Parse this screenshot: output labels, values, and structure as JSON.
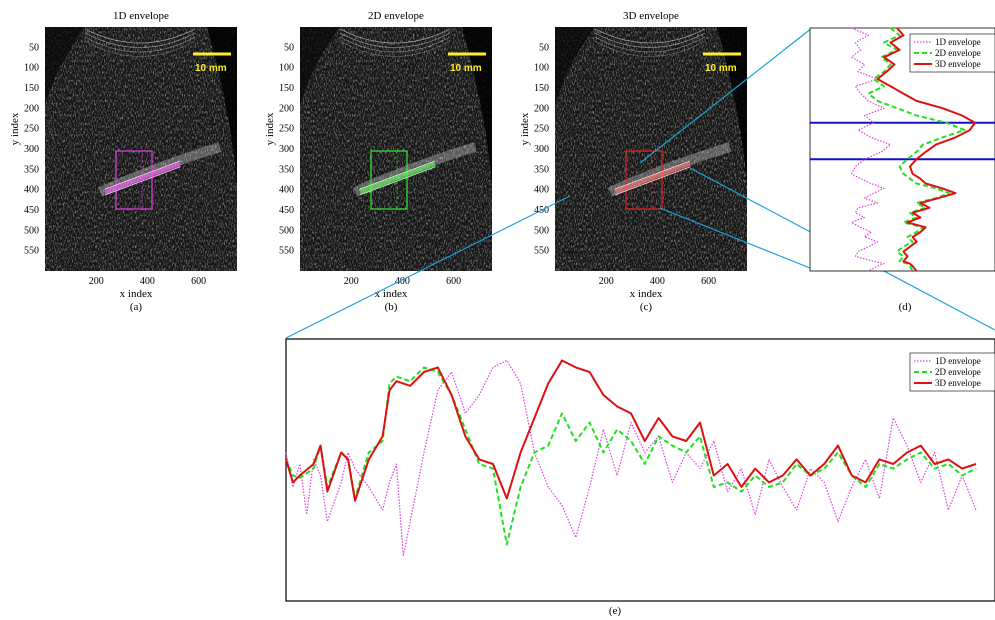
{
  "panels": [
    {
      "id": "a",
      "title": "1D envelope",
      "caption": "(a)",
      "roi_color": "#d63bd6",
      "band_color": "#ff66ff"
    },
    {
      "id": "b",
      "title": "2D envelope",
      "caption": "(b)",
      "roi_color": "#33dd33",
      "band_color": "#66ff66"
    },
    {
      "id": "c",
      "title": "3D envelope",
      "caption": "(c)",
      "roi_color": "#dd2222",
      "band_color": "#ff7777"
    }
  ],
  "axes": {
    "xlabel": "x index",
    "ylabel": "y index",
    "x_ticks": [
      "200",
      "400",
      "600"
    ],
    "y_ticks": [
      "50",
      "100",
      "150",
      "200",
      "250",
      "300",
      "350",
      "400",
      "450",
      "500",
      "550"
    ]
  },
  "scale_bar_label": "10 mm",
  "panel_d": {
    "caption": "(d)"
  },
  "panel_e": {
    "caption": "(e)"
  },
  "legend": {
    "items": [
      "1D envelope",
      "2D envelope",
      "3D envelope"
    ]
  },
  "colors": {
    "1d": "#e040e0",
    "2d": "#20e020",
    "3d": "#dd1111",
    "zoom_lines": "#1aa3d9",
    "guide_lines": "#1010cc",
    "scale_bar": "#ffef2a"
  },
  "chart_data": [
    {
      "type": "line",
      "panel": "d",
      "orientation": "vertical",
      "ylim": [
        0,
        1
      ],
      "xlim": [
        0,
        1
      ],
      "horizontal_markers": [
        0.39,
        0.54
      ],
      "series": [
        {
          "name": "1D envelope",
          "style": "dotted",
          "x": [
            0.05,
            0.18,
            0.08,
            0.12,
            0.05,
            0.15,
            0.1,
            0.25,
            0.08,
            0.12,
            0.18,
            0.3,
            0.15,
            0.22,
            0.1,
            0.2,
            0.35,
            0.28,
            0.15,
            0.08,
            0.05,
            0.12,
            0.2,
            0.3,
            0.22,
            0.15,
            0.25,
            0.1,
            0.08,
            0.15,
            0.05,
            0.12,
            0.2,
            0.15,
            0.25,
            0.18,
            0.1,
            0.08,
            0.22,
            0.3,
            0.25,
            0.18
          ],
          "y": [
            0.0,
            0.03,
            0.06,
            0.09,
            0.12,
            0.15,
            0.18,
            0.21,
            0.24,
            0.27,
            0.3,
            0.33,
            0.36,
            0.39,
            0.42,
            0.45,
            0.48,
            0.51,
            0.54,
            0.57,
            0.6,
            0.62,
            0.64,
            0.66,
            0.68,
            0.7,
            0.72,
            0.74,
            0.76,
            0.78,
            0.8,
            0.82,
            0.84,
            0.86,
            0.88,
            0.9,
            0.92,
            0.94,
            0.96,
            0.97,
            0.98,
            1.0
          ]
        },
        {
          "name": "2D envelope",
          "style": "dashed",
          "x": [
            0.35,
            0.42,
            0.3,
            0.4,
            0.28,
            0.35,
            0.3,
            0.22,
            0.3,
            0.18,
            0.25,
            0.4,
            0.55,
            0.78,
            0.92,
            0.75,
            0.6,
            0.55,
            0.48,
            0.42,
            0.45,
            0.5,
            0.55,
            0.7,
            0.8,
            0.7,
            0.55,
            0.62,
            0.5,
            0.55,
            0.45,
            0.6,
            0.55,
            0.48,
            0.52,
            0.45,
            0.4,
            0.45,
            0.42,
            0.48,
            0.5,
            0.52
          ],
          "y": [
            0.0,
            0.03,
            0.06,
            0.09,
            0.12,
            0.15,
            0.18,
            0.21,
            0.24,
            0.27,
            0.3,
            0.33,
            0.36,
            0.39,
            0.42,
            0.45,
            0.48,
            0.51,
            0.54,
            0.57,
            0.6,
            0.62,
            0.64,
            0.66,
            0.68,
            0.7,
            0.72,
            0.74,
            0.76,
            0.78,
            0.8,
            0.82,
            0.84,
            0.86,
            0.88,
            0.9,
            0.92,
            0.94,
            0.96,
            0.97,
            0.98,
            1.0
          ]
        },
        {
          "name": "3D envelope",
          "style": "solid",
          "x": [
            0.4,
            0.45,
            0.35,
            0.42,
            0.3,
            0.38,
            0.32,
            0.25,
            0.35,
            0.45,
            0.55,
            0.75,
            0.9,
            1.0,
            0.96,
            0.85,
            0.7,
            0.62,
            0.55,
            0.5,
            0.52,
            0.58,
            0.62,
            0.75,
            0.85,
            0.72,
            0.58,
            0.65,
            0.52,
            0.58,
            0.48,
            0.62,
            0.58,
            0.52,
            0.55,
            0.5,
            0.45,
            0.48,
            0.45,
            0.5,
            0.52,
            0.55
          ],
          "y": [
            0.0,
            0.03,
            0.06,
            0.09,
            0.12,
            0.15,
            0.18,
            0.21,
            0.24,
            0.27,
            0.3,
            0.33,
            0.36,
            0.39,
            0.42,
            0.45,
            0.48,
            0.51,
            0.54,
            0.57,
            0.6,
            0.62,
            0.64,
            0.66,
            0.68,
            0.7,
            0.72,
            0.74,
            0.76,
            0.78,
            0.8,
            0.82,
            0.84,
            0.86,
            0.88,
            0.9,
            0.92,
            0.94,
            0.96,
            0.97,
            0.98,
            1.0
          ]
        }
      ]
    },
    {
      "type": "line",
      "panel": "e",
      "xlim": [
        0,
        1
      ],
      "ylim": [
        0,
        1
      ],
      "series": [
        {
          "name": "1D envelope",
          "style": "dotted",
          "x": [
            0.0,
            0.01,
            0.02,
            0.03,
            0.04,
            0.05,
            0.06,
            0.08,
            0.09,
            0.1,
            0.12,
            0.14,
            0.15,
            0.16,
            0.17,
            0.18,
            0.2,
            0.22,
            0.24,
            0.26,
            0.28,
            0.3,
            0.32,
            0.34,
            0.36,
            0.38,
            0.4,
            0.42,
            0.44,
            0.46,
            0.48,
            0.5,
            0.52,
            0.54,
            0.56,
            0.58,
            0.6,
            0.62,
            0.64,
            0.66,
            0.68,
            0.7,
            0.72,
            0.74,
            0.76,
            0.78,
            0.8,
            0.82,
            0.84,
            0.86,
            0.88,
            0.9,
            0.92,
            0.94,
            0.96,
            0.98,
            1.0
          ],
          "y": [
            0.55,
            0.4,
            0.5,
            0.28,
            0.52,
            0.45,
            0.25,
            0.42,
            0.55,
            0.48,
            0.4,
            0.3,
            0.42,
            0.5,
            0.1,
            0.25,
            0.55,
            0.82,
            0.9,
            0.72,
            0.8,
            0.92,
            0.95,
            0.85,
            0.55,
            0.4,
            0.32,
            0.18,
            0.4,
            0.65,
            0.45,
            0.68,
            0.55,
            0.62,
            0.42,
            0.55,
            0.48,
            0.6,
            0.38,
            0.48,
            0.28,
            0.52,
            0.4,
            0.3,
            0.48,
            0.42,
            0.25,
            0.4,
            0.52,
            0.35,
            0.7,
            0.58,
            0.42,
            0.55,
            0.3,
            0.45,
            0.3
          ]
        },
        {
          "name": "2D envelope",
          "style": "dashed",
          "x": [
            0.0,
            0.01,
            0.02,
            0.04,
            0.05,
            0.06,
            0.08,
            0.09,
            0.1,
            0.12,
            0.14,
            0.15,
            0.16,
            0.18,
            0.2,
            0.22,
            0.24,
            0.26,
            0.28,
            0.3,
            0.32,
            0.34,
            0.36,
            0.38,
            0.4,
            0.42,
            0.44,
            0.46,
            0.48,
            0.5,
            0.52,
            0.54,
            0.56,
            0.58,
            0.6,
            0.62,
            0.64,
            0.66,
            0.68,
            0.7,
            0.72,
            0.74,
            0.76,
            0.78,
            0.8,
            0.82,
            0.84,
            0.86,
            0.88,
            0.9,
            0.92,
            0.94,
            0.96,
            0.98,
            1.0
          ],
          "y": [
            0.52,
            0.45,
            0.44,
            0.48,
            0.58,
            0.4,
            0.55,
            0.52,
            0.35,
            0.55,
            0.6,
            0.85,
            0.88,
            0.86,
            0.92,
            0.9,
            0.8,
            0.65,
            0.5,
            0.48,
            0.15,
            0.4,
            0.55,
            0.58,
            0.72,
            0.6,
            0.68,
            0.55,
            0.65,
            0.6,
            0.5,
            0.62,
            0.58,
            0.55,
            0.62,
            0.4,
            0.42,
            0.38,
            0.45,
            0.4,
            0.42,
            0.5,
            0.45,
            0.48,
            0.55,
            0.45,
            0.4,
            0.5,
            0.48,
            0.52,
            0.55,
            0.48,
            0.5,
            0.45,
            0.48
          ]
        },
        {
          "name": "3D envelope",
          "style": "solid",
          "x": [
            0.0,
            0.01,
            0.02,
            0.04,
            0.05,
            0.06,
            0.08,
            0.09,
            0.1,
            0.12,
            0.14,
            0.15,
            0.16,
            0.18,
            0.2,
            0.22,
            0.24,
            0.26,
            0.28,
            0.3,
            0.32,
            0.34,
            0.36,
            0.38,
            0.4,
            0.42,
            0.44,
            0.46,
            0.48,
            0.5,
            0.52,
            0.54,
            0.56,
            0.58,
            0.6,
            0.62,
            0.64,
            0.66,
            0.68,
            0.7,
            0.72,
            0.74,
            0.76,
            0.78,
            0.8,
            0.82,
            0.84,
            0.86,
            0.88,
            0.9,
            0.92,
            0.94,
            0.96,
            0.98,
            1.0
          ],
          "y": [
            0.52,
            0.42,
            0.45,
            0.5,
            0.58,
            0.38,
            0.55,
            0.52,
            0.34,
            0.52,
            0.62,
            0.82,
            0.86,
            0.84,
            0.9,
            0.92,
            0.8,
            0.62,
            0.52,
            0.5,
            0.35,
            0.55,
            0.7,
            0.85,
            0.95,
            0.92,
            0.9,
            0.8,
            0.75,
            0.72,
            0.6,
            0.7,
            0.62,
            0.6,
            0.68,
            0.45,
            0.5,
            0.4,
            0.48,
            0.42,
            0.45,
            0.52,
            0.45,
            0.5,
            0.58,
            0.45,
            0.42,
            0.52,
            0.5,
            0.55,
            0.58,
            0.5,
            0.52,
            0.48,
            0.5
          ]
        }
      ]
    }
  ]
}
